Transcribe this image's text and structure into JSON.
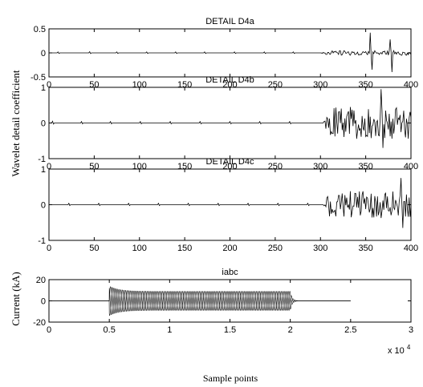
{
  "figure": {
    "ylabel_top": "Wavelet detail coefficient",
    "ylabel_bottom": "Current (kA)",
    "xlabel": "Sample points",
    "multiplier_base": "x 10",
    "multiplier_exp": "4"
  },
  "chart_data": [
    {
      "type": "line",
      "title": "DETAIL  D4a",
      "xlim": [
        0,
        400
      ],
      "ylim": [
        -0.5,
        0.5
      ],
      "xticks": [
        "0",
        "50",
        "100",
        "150",
        "200",
        "250",
        "300",
        "350",
        "400"
      ],
      "yticks": [
        "0.5",
        "0",
        "-0.5"
      ],
      "grid": false,
      "series": [
        {
          "baseline_samples": [
            0,
            300
          ],
          "spikes": [
            [
              10,
              0.02
            ],
            [
              45,
              0.025
            ],
            [
              75,
              0.02
            ],
            [
              108,
              0.02
            ],
            [
              140,
              0.02
            ],
            [
              172,
              0.02
            ],
            [
              205,
              0.02
            ],
            [
              238,
              0.02
            ],
            [
              270,
              0.02
            ]
          ],
          "oscillation_range": [
            300,
            400
          ],
          "oscillation_amp": 0.05,
          "transients": [
            [
              355,
              0.42
            ],
            [
              357,
              -0.35
            ],
            [
              377,
              0.28
            ],
            [
              379,
              -0.4
            ]
          ]
        }
      ]
    },
    {
      "type": "line",
      "title": "DETAIL  D4b",
      "xlim": [
        0,
        400
      ],
      "ylim": [
        -1,
        1
      ],
      "xticks": [
        "0",
        "50",
        "100",
        "150",
        "200",
        "250",
        "300",
        "350",
        "400"
      ],
      "yticks": [
        "1",
        "0",
        "-1"
      ],
      "grid": false,
      "series": [
        {
          "baseline_samples": [
            0,
            303
          ],
          "spikes": [
            [
              4,
              0.05
            ],
            [
              36,
              0.04
            ],
            [
              68,
              0.04
            ],
            [
              101,
              0.04
            ],
            [
              134,
              0.04
            ],
            [
              167,
              0.04
            ],
            [
              200,
              0.04
            ],
            [
              233,
              0.04
            ],
            [
              266,
              0.04
            ]
          ],
          "oscillation_range": [
            303,
            400
          ],
          "oscillation_amp": 0.45,
          "transients": [
            [
              367,
              0.95
            ],
            [
              369,
              -0.7
            ]
          ]
        }
      ]
    },
    {
      "type": "line",
      "title": "DETAIL  D4c",
      "xlim": [
        0,
        400
      ],
      "ylim": [
        -1,
        1
      ],
      "xticks": [
        "0",
        "50",
        "100",
        "150",
        "200",
        "250",
        "300",
        "350",
        "400"
      ],
      "yticks": [
        "1",
        "0",
        "-1"
      ],
      "grid": false,
      "series": [
        {
          "baseline_samples": [
            0,
            303
          ],
          "spikes": [
            [
              22,
              0.04
            ],
            [
              55,
              0.04
            ],
            [
              88,
              0.04
            ],
            [
              121,
              0.04
            ],
            [
              154,
              0.04
            ],
            [
              187,
              0.04
            ],
            [
              220,
              0.04
            ],
            [
              253,
              0.04
            ],
            [
              286,
              0.04
            ]
          ],
          "oscillation_range": [
            303,
            400
          ],
          "oscillation_amp": 0.4,
          "transients": [
            [
              389,
              0.75
            ],
            [
              391,
              -0.65
            ]
          ]
        }
      ]
    },
    {
      "type": "line",
      "title": "iabc",
      "xlim": [
        0,
        3
      ],
      "ylim": [
        -20,
        20
      ],
      "x_multiplier": "x 10^4",
      "xticks": [
        "0",
        "0.5",
        "1",
        "1.5",
        "2",
        "2.5",
        "3"
      ],
      "yticks": [
        "20",
        "0",
        "-20"
      ],
      "grid": false,
      "series": [
        {
          "phase_deg": 0,
          "fault_start": 0.5,
          "fault_end": 2.0,
          "signal_end": 2.5,
          "peak_initial": 14,
          "amplitude": 9,
          "cycles": 36
        },
        {
          "phase_deg": 120,
          "fault_start": 0.5,
          "fault_end": 2.0,
          "signal_end": 2.5,
          "peak_initial": 14,
          "amplitude": 9,
          "cycles": 36
        },
        {
          "phase_deg": 240,
          "fault_start": 0.5,
          "fault_end": 2.0,
          "signal_end": 2.5,
          "peak_initial": 14,
          "amplitude": 9,
          "cycles": 36
        }
      ]
    }
  ]
}
